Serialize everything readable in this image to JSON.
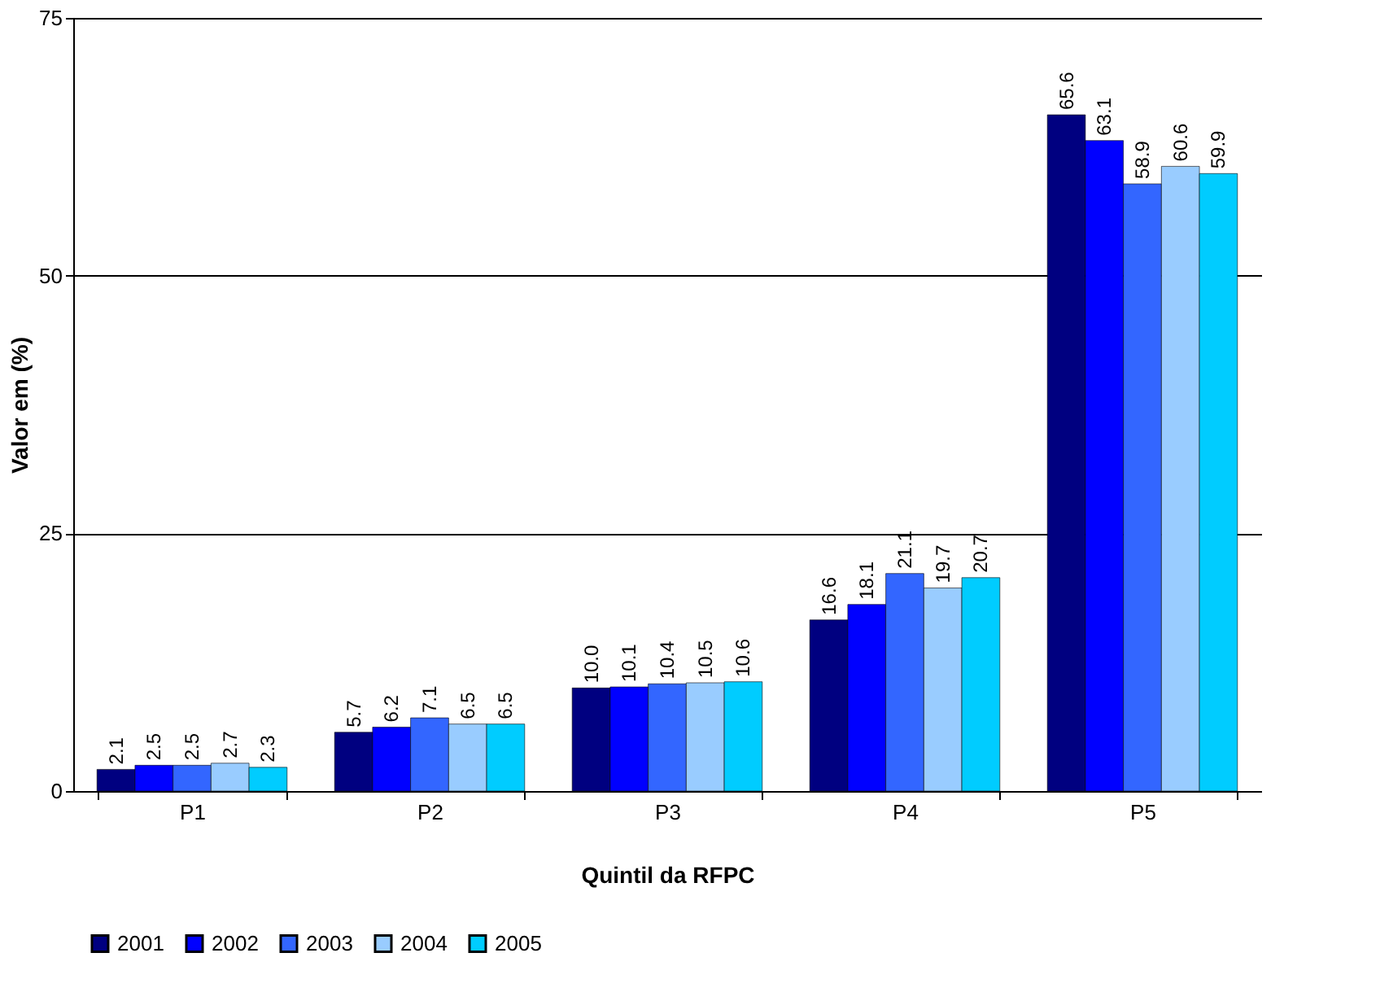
{
  "chart_data": {
    "type": "bar",
    "xlabel": "Quintil da RFPC",
    "ylabel": "Valor em (%)",
    "categories": [
      "P1",
      "P2",
      "P3",
      "P4",
      "P5"
    ],
    "series": [
      {
        "name": "2001",
        "color": "#000080",
        "values": [
          2.1,
          5.7,
          10.0,
          16.6,
          65.6
        ],
        "value_labels": [
          "2.1",
          "5.7",
          "10.0",
          "16.6",
          "65.6"
        ]
      },
      {
        "name": "2002",
        "color": "#0000ff",
        "values": [
          2.5,
          6.2,
          10.1,
          18.1,
          63.1
        ],
        "value_labels": [
          "2.5",
          "6.2",
          "10.1",
          "18.1",
          "63.1"
        ]
      },
      {
        "name": "2003",
        "color": "#3366ff",
        "values": [
          2.5,
          7.1,
          10.4,
          21.1,
          58.9
        ],
        "value_labels": [
          "2.5",
          "7.1",
          "10.4",
          "21.1",
          "58.9"
        ]
      },
      {
        "name": "2004",
        "color": "#99ccff",
        "values": [
          2.7,
          6.5,
          10.5,
          19.7,
          60.6
        ],
        "value_labels": [
          "2.7",
          "6.5",
          "10.5",
          "19.7",
          "60.6"
        ]
      },
      {
        "name": "2005",
        "color": "#00ccff",
        "values": [
          2.3,
          6.5,
          10.6,
          20.7,
          59.9
        ],
        "value_labels": [
          "2.3",
          "6.5",
          "10.6",
          "20.7",
          "59.9"
        ]
      }
    ],
    "ylim": [
      0,
      75
    ],
    "yticks": [
      0,
      25,
      50,
      75
    ],
    "grid": "y",
    "legend": "bottom"
  }
}
